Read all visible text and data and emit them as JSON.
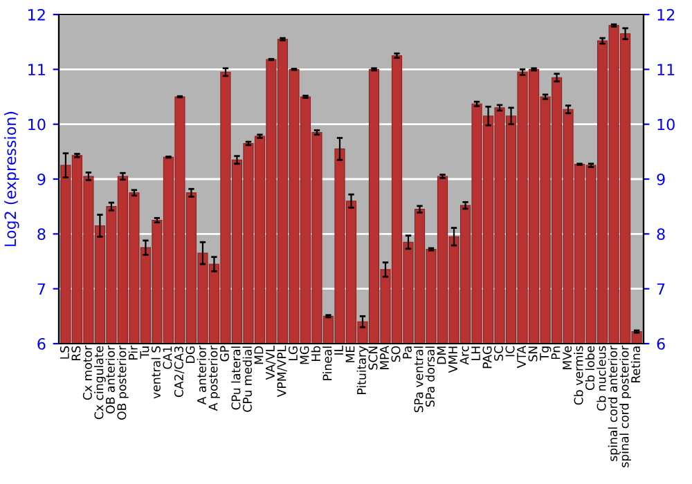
{
  "chart_data": {
    "type": "bar",
    "ylabel": "Log2 (expression)",
    "categories": [
      "LS",
      "RS",
      "Cx motor",
      "Cx cingulate",
      "OB anterior",
      "OB posterior",
      "Pir",
      "Tu",
      "ventral S",
      "CA1",
      "CA2/CA3",
      "DG",
      "A anterior",
      "A posterior",
      "GP",
      "CPu lateral",
      "CPu medial",
      "MD",
      "VA/VL",
      "VPM/VPL",
      "LG",
      "MG",
      "Hb",
      "Pineal",
      "IL",
      "ME",
      "Pituitary",
      "SCN",
      "MPA",
      "SO",
      "Pa",
      "SPa ventral",
      "SPa dorsal",
      "DM",
      "VMH",
      "Arc",
      "LH",
      "PAG",
      "SC",
      "IC",
      "VTA",
      "SN",
      "Tg",
      "Pn",
      "MVe",
      "Cb vermis",
      "Cb lobe",
      "Cb nucleus",
      "spinal cord anterior",
      "spinal cord posterior",
      "Retina"
    ],
    "values": [
      9.25,
      9.43,
      9.05,
      8.15,
      8.5,
      9.05,
      8.75,
      7.75,
      8.25,
      9.4,
      10.5,
      8.75,
      7.65,
      7.45,
      10.95,
      9.35,
      9.65,
      9.78,
      11.18,
      11.55,
      11.0,
      10.5,
      9.85,
      6.5,
      9.55,
      8.6,
      6.4,
      11.0,
      7.35,
      11.25,
      7.85,
      8.45,
      7.72,
      9.05,
      7.95,
      8.52,
      10.37,
      10.15,
      10.3,
      10.15,
      10.95,
      11.0,
      10.5,
      10.85,
      10.27,
      9.27,
      9.25,
      11.52,
      11.8,
      11.65,
      6.22
    ],
    "errors": [
      0.22,
      0.03,
      0.07,
      0.2,
      0.07,
      0.06,
      0.05,
      0.13,
      0.04,
      0.01,
      0.01,
      0.07,
      0.2,
      0.13,
      0.07,
      0.07,
      0.03,
      0.03,
      0.01,
      0.02,
      0.01,
      0.02,
      0.04,
      0.02,
      0.2,
      0.12,
      0.1,
      0.02,
      0.13,
      0.04,
      0.12,
      0.06,
      0.02,
      0.03,
      0.16,
      0.06,
      0.04,
      0.17,
      0.05,
      0.15,
      0.05,
      0.02,
      0.04,
      0.07,
      0.07,
      0.01,
      0.03,
      0.05,
      0.02,
      0.1,
      0.02
    ],
    "color": "#b83232",
    "ylim": [
      6,
      12
    ],
    "yticks": [
      6,
      7,
      8,
      9,
      10,
      11,
      12
    ],
    "y2lim": [
      6,
      12
    ],
    "y2ticks": [
      6,
      7,
      8,
      9,
      10,
      11,
      12
    ],
    "grid": "y"
  }
}
